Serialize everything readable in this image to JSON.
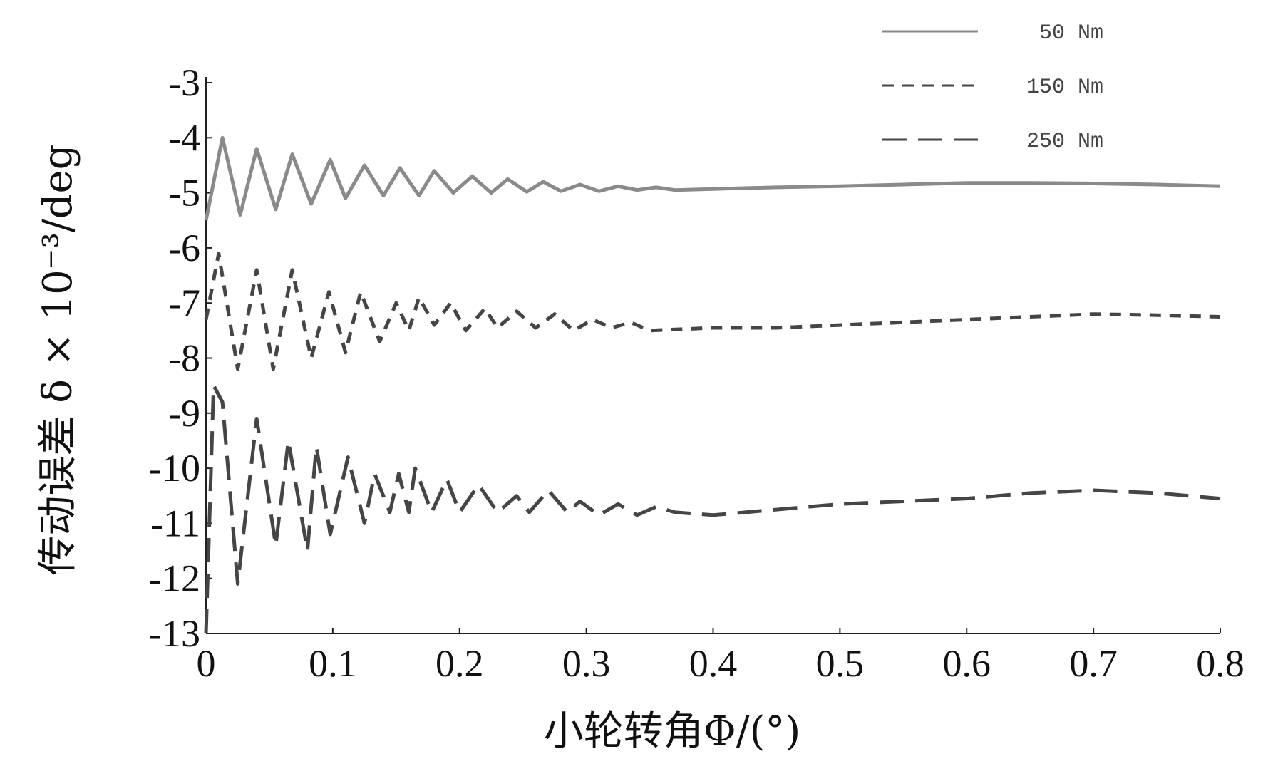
{
  "chart_data": {
    "type": "line",
    "x_label": "小轮转角Φ/(°)",
    "y_label": "传动误差 δ × 10⁻³/deg",
    "xlim": [
      0,
      0.8
    ],
    "ylim": [
      -13,
      -3
    ],
    "xticks": [
      0,
      0.1,
      0.2,
      0.3,
      0.4,
      0.5,
      0.6,
      0.7,
      0.8
    ],
    "yticks": [
      -3,
      -4,
      -5,
      -6,
      -7,
      -8,
      -9,
      -10,
      -11,
      -12,
      -13
    ],
    "legend": "top-right",
    "series": [
      {
        "name": "50 Nm",
        "color": "#8a8a8a",
        "x": [
          0,
          0.013,
          0.027,
          0.04,
          0.055,
          0.068,
          0.083,
          0.098,
          0.11,
          0.125,
          0.14,
          0.153,
          0.168,
          0.18,
          0.195,
          0.21,
          0.225,
          0.238,
          0.253,
          0.266,
          0.28,
          0.295,
          0.31,
          0.325,
          0.34,
          0.355,
          0.37,
          0.4,
          0.45,
          0.5,
          0.55,
          0.6,
          0.65,
          0.7,
          0.75,
          0.8
        ],
        "values": [
          -5.5,
          -4.0,
          -5.4,
          -4.2,
          -5.3,
          -4.3,
          -5.2,
          -4.4,
          -5.1,
          -4.5,
          -5.05,
          -4.55,
          -5.05,
          -4.6,
          -5.0,
          -4.7,
          -5.0,
          -4.75,
          -4.98,
          -4.8,
          -4.97,
          -4.85,
          -4.97,
          -4.88,
          -4.95,
          -4.9,
          -4.95,
          -4.93,
          -4.9,
          -4.88,
          -4.85,
          -4.82,
          -4.82,
          -4.83,
          -4.85,
          -4.88
        ]
      },
      {
        "name": "150 Nm",
        "color": "#454545",
        "x": [
          0,
          0.01,
          0.025,
          0.04,
          0.053,
          0.068,
          0.083,
          0.097,
          0.11,
          0.122,
          0.137,
          0.15,
          0.16,
          0.168,
          0.18,
          0.193,
          0.205,
          0.22,
          0.23,
          0.245,
          0.26,
          0.275,
          0.29,
          0.305,
          0.32,
          0.335,
          0.35,
          0.4,
          0.45,
          0.5,
          0.55,
          0.6,
          0.65,
          0.7,
          0.75,
          0.8
        ],
        "values": [
          -7.3,
          -6.1,
          -8.2,
          -6.4,
          -8.2,
          -6.4,
          -8.0,
          -6.8,
          -7.9,
          -6.8,
          -7.7,
          -7.0,
          -7.5,
          -6.9,
          -7.4,
          -7.0,
          -7.5,
          -7.1,
          -7.45,
          -7.15,
          -7.45,
          -7.2,
          -7.5,
          -7.3,
          -7.45,
          -7.35,
          -7.5,
          -7.45,
          -7.45,
          -7.4,
          -7.35,
          -7.3,
          -7.25,
          -7.2,
          -7.22,
          -7.25
        ]
      },
      {
        "name": "250 Nm",
        "color": "#454545",
        "x": [
          0,
          0.006,
          0.013,
          0.025,
          0.04,
          0.055,
          0.065,
          0.08,
          0.087,
          0.098,
          0.112,
          0.125,
          0.133,
          0.145,
          0.152,
          0.16,
          0.165,
          0.178,
          0.19,
          0.2,
          0.215,
          0.23,
          0.245,
          0.255,
          0.27,
          0.285,
          0.295,
          0.31,
          0.325,
          0.34,
          0.355,
          0.37,
          0.4,
          0.45,
          0.5,
          0.55,
          0.6,
          0.65,
          0.7,
          0.75,
          0.8
        ],
        "values": [
          -13,
          -8.5,
          -8.8,
          -12.1,
          -9.1,
          -11.4,
          -9.5,
          -11.5,
          -9.6,
          -11.2,
          -9.8,
          -11.0,
          -10.1,
          -10.8,
          -10.1,
          -10.8,
          -10.0,
          -10.8,
          -10.2,
          -10.8,
          -10.3,
          -10.8,
          -10.5,
          -10.8,
          -10.4,
          -10.8,
          -10.6,
          -10.85,
          -10.65,
          -10.85,
          -10.7,
          -10.8,
          -10.85,
          -10.75,
          -10.65,
          -10.6,
          -10.55,
          -10.45,
          -10.4,
          -10.45,
          -10.55
        ]
      }
    ]
  }
}
